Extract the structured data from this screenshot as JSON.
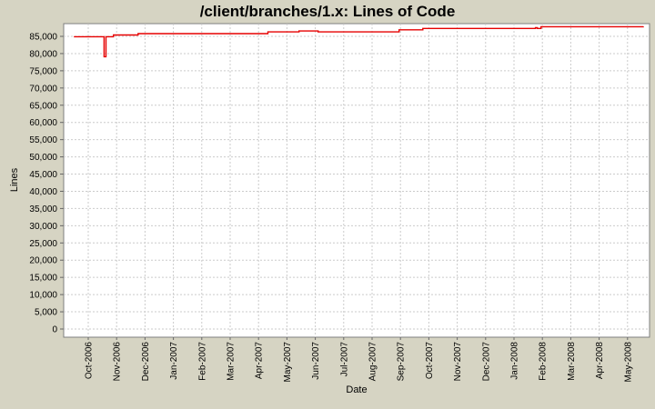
{
  "title": "/client/branches/1.x: Lines of Code",
  "colors": {
    "background": "#d6d4c3",
    "plot_background": "#ffffff",
    "plot_border": "#7f7f7f",
    "gridline": "#cbcbcb",
    "tick_mark": "#666666",
    "text": "#000000",
    "line": "#e60000"
  },
  "chart_data": {
    "type": "line",
    "step": true,
    "title": "/client/branches/1.x: Lines of Code",
    "xlabel": "Date",
    "ylabel": "Lines",
    "ylim": [
      0,
      88700
    ],
    "grid": "dashed",
    "legend_position": "none",
    "y_ticks": [
      0,
      5000,
      10000,
      15000,
      20000,
      25000,
      30000,
      35000,
      40000,
      45000,
      50000,
      55000,
      60000,
      65000,
      70000,
      75000,
      80000,
      85000
    ],
    "x_tick_labels": [
      "Oct-2006",
      "Nov-2006",
      "Dec-2006",
      "Jan-2007",
      "Feb-2007",
      "Mar-2007",
      "Apr-2007",
      "May-2007",
      "Jun-2007",
      "Jul-2007",
      "Aug-2007",
      "Sep-2007",
      "Oct-2007",
      "Nov-2007",
      "Dec-2007",
      "Jan-2008",
      "Feb-2008",
      "Mar-2008",
      "Apr-2008",
      "May-2008"
    ],
    "series": [
      {
        "name": "Lines of Code",
        "color": "#e60000",
        "points": [
          [
            "2006-09-16",
            84900
          ],
          [
            "2006-10-17",
            84900
          ],
          [
            "2006-10-18",
            79100
          ],
          [
            "2006-10-20",
            84900
          ],
          [
            "2006-10-28",
            85400
          ],
          [
            "2006-11-24",
            85800
          ],
          [
            "2007-04-11",
            86300
          ],
          [
            "2007-05-14",
            86550
          ],
          [
            "2007-06-04",
            86300
          ],
          [
            "2007-08-30",
            86900
          ],
          [
            "2007-09-25",
            87300
          ],
          [
            "2008-01-24",
            87500
          ],
          [
            "2008-01-26",
            87300
          ],
          [
            "2008-01-30",
            87800
          ],
          [
            "2008-05-18",
            87850
          ]
        ]
      }
    ]
  }
}
